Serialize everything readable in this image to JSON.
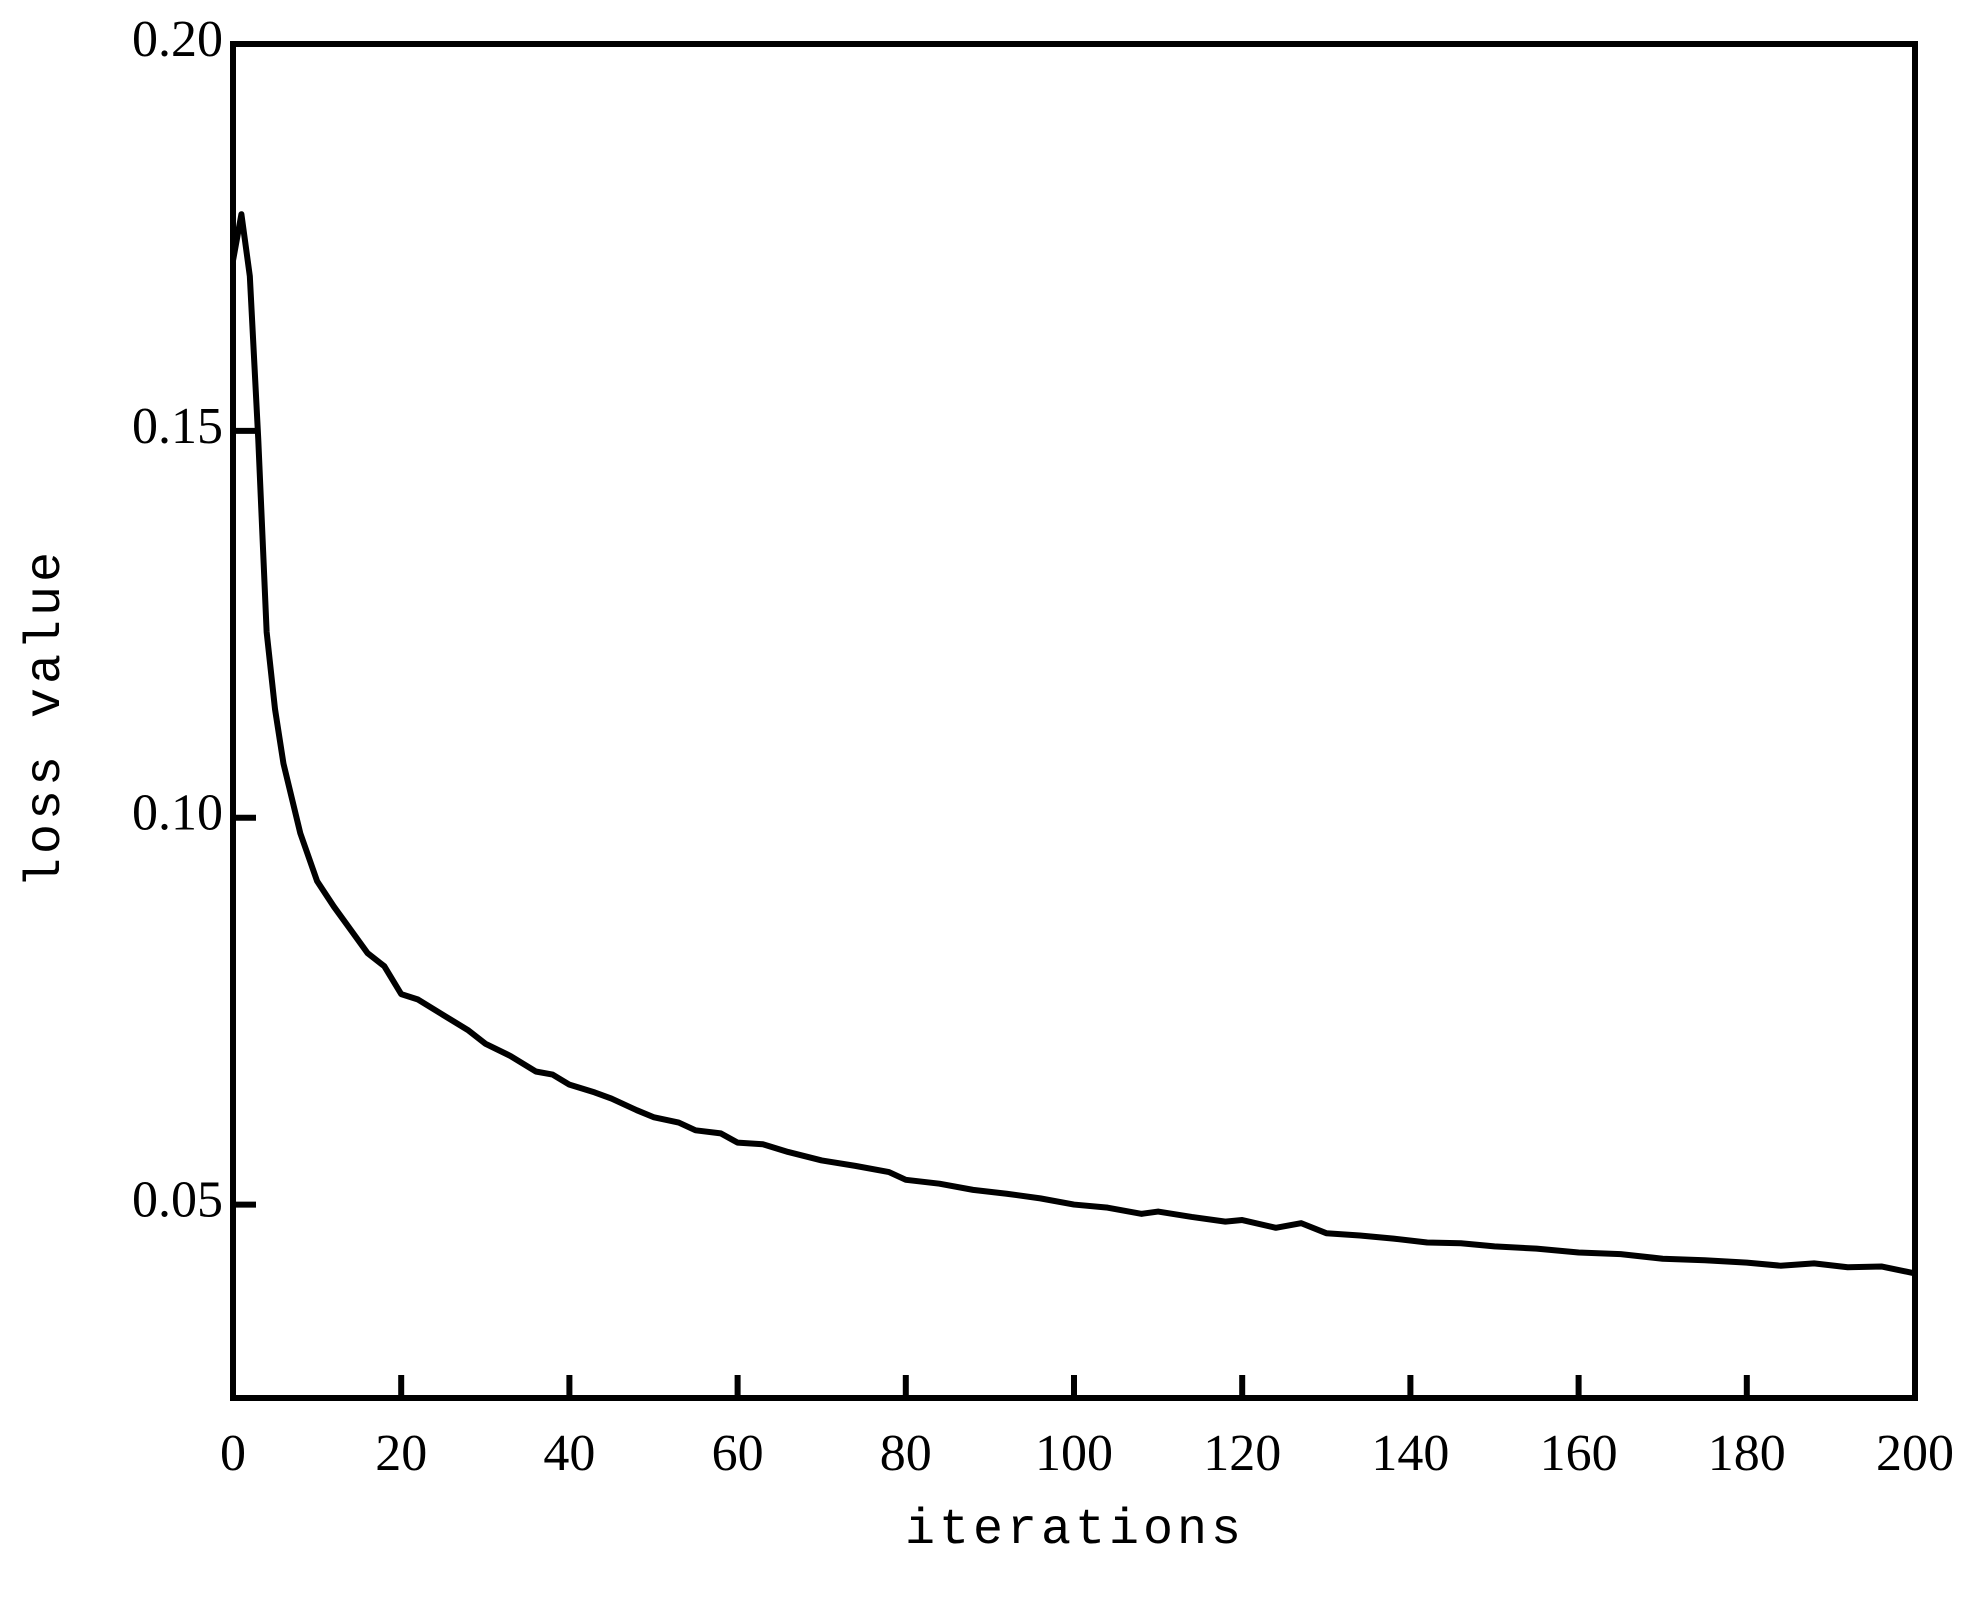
{
  "chart_data": {
    "type": "line",
    "x_label": "iterations",
    "y_label": "loss value",
    "x": [
      0,
      1,
      2,
      3,
      4,
      5,
      6,
      8,
      10,
      12,
      14,
      16,
      18,
      20,
      22,
      25,
      28,
      30,
      33,
      36,
      38,
      40,
      43,
      45,
      48,
      50,
      53,
      55,
      58,
      60,
      63,
      66,
      70,
      74,
      78,
      80,
      84,
      88,
      92,
      96,
      100,
      104,
      108,
      110,
      114,
      118,
      120,
      124,
      127,
      130,
      134,
      138,
      142,
      146,
      150,
      155,
      160,
      165,
      170,
      175,
      180,
      184,
      188,
      192,
      196,
      200
    ],
    "series": [
      {
        "color": "#000000",
        "values": [
          0.172,
          0.178,
          0.17,
          0.149,
          0.124,
          0.114,
          0.107,
          0.098,
          0.0918,
          0.0885,
          0.0855,
          0.0825,
          0.0808,
          0.0772,
          0.0765,
          0.0745,
          0.0725,
          0.0708,
          0.0692,
          0.0672,
          0.0668,
          0.0655,
          0.0645,
          0.0637,
          0.0622,
          0.0613,
          0.0606,
          0.0596,
          0.0592,
          0.058,
          0.0578,
          0.0568,
          0.0557,
          0.055,
          0.0542,
          0.0532,
          0.0527,
          0.0519,
          0.0514,
          0.0508,
          0.05,
          0.0496,
          0.0488,
          0.0491,
          0.0484,
          0.0478,
          0.048,
          0.047,
          0.0476,
          0.0463,
          0.046,
          0.0456,
          0.0451,
          0.045,
          0.0446,
          0.0443,
          0.0438,
          0.0436,
          0.043,
          0.0428,
          0.0425,
          0.0421,
          0.0424,
          0.0419,
          0.042,
          0.0411
        ]
      }
    ],
    "xlim": [
      0,
      200
    ],
    "xticks": [
      0,
      20,
      40,
      60,
      80,
      100,
      120,
      140,
      160,
      180,
      200
    ],
    "ylim": [
      0.025,
      0.2
    ],
    "yticks": [
      0.05,
      {
        "value": 0.1,
        "label": "0.10"
      },
      0.15,
      {
        "value": 0.2,
        "label": "0.20"
      }
    ],
    "grid": false
  }
}
